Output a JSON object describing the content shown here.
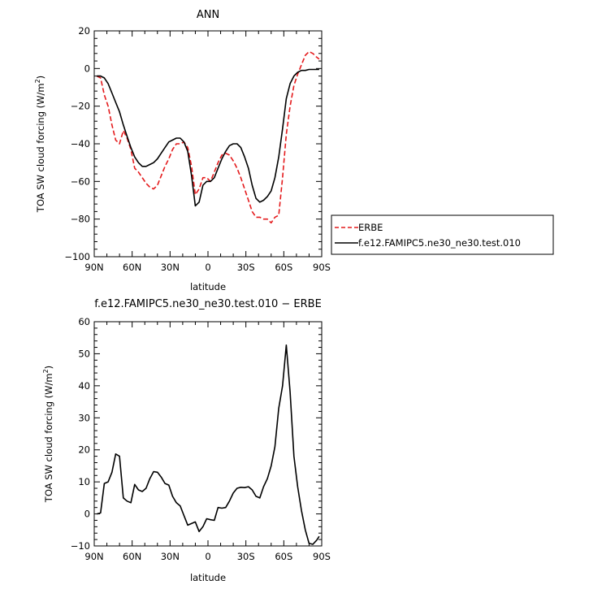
{
  "chart_data": [
    {
      "type": "line",
      "title": "ANN",
      "xlabel": "latitude",
      "ylabel": "TOA SW cloud forcing",
      "ylabel_unit": "(W/m",
      "ylabel_sup": "2",
      "ylabel_close": ")",
      "xlim": [
        90,
        -90
      ],
      "ylim": [
        -100,
        20
      ],
      "x_ticks": [
        90,
        60,
        30,
        0,
        -30,
        -60,
        -90
      ],
      "x_tick_labels": [
        "90N",
        "60N",
        "30N",
        "0",
        "30S",
        "60S",
        "90S"
      ],
      "y_ticks": [
        -100,
        -80,
        -60,
        -40,
        -20,
        0,
        20
      ],
      "y_tick_labels": [
        "−100",
        "−80",
        "−60",
        "−40",
        "−20",
        "0",
        "20"
      ],
      "legend_position": "right",
      "series": [
        {
          "name": "ERBE",
          "color": "#e41a1c",
          "dash": "dashed",
          "x": [
            88,
            85,
            82,
            79,
            76,
            73,
            70,
            67,
            64,
            61,
            58,
            55,
            52,
            49,
            46,
            43,
            40,
            37,
            34,
            31,
            28,
            25,
            22,
            19,
            16,
            13,
            10,
            7,
            4,
            1,
            -2,
            -5,
            -8,
            -11,
            -14,
            -17,
            -20,
            -23,
            -26,
            -29,
            -32,
            -35,
            -38,
            -41,
            -44,
            -47,
            -50,
            -53,
            -56,
            -59,
            -62,
            -65,
            -68,
            -71,
            -74,
            -77,
            -80,
            -83,
            -86,
            -88
          ],
          "y": [
            -4,
            -5,
            -14,
            -20,
            -30,
            -38,
            -40,
            -33,
            -37,
            -43,
            -53,
            -55,
            -58,
            -61,
            -63,
            -64,
            -62,
            -57,
            -52,
            -48,
            -43,
            -40,
            -40,
            -39,
            -42,
            -52,
            -67,
            -64,
            -58,
            -58,
            -60,
            -55,
            -50,
            -46,
            -45,
            -46,
            -49,
            -53,
            -58,
            -64,
            -70,
            -76,
            -79,
            -79,
            -80,
            -80,
            -82,
            -79,
            -78,
            -58,
            -35,
            -20,
            -9,
            -3,
            2,
            7,
            9,
            8,
            6,
            5
          ]
        },
        {
          "name": "f.e12.FAMIPC5.ne30_ne30.test.010",
          "color": "#000000",
          "dash": "solid",
          "x": [
            88,
            85,
            82,
            79,
            76,
            73,
            70,
            67,
            64,
            61,
            58,
            55,
            52,
            49,
            46,
            43,
            40,
            37,
            34,
            31,
            28,
            25,
            22,
            19,
            16,
            13,
            10,
            7,
            4,
            1,
            -2,
            -5,
            -8,
            -11,
            -14,
            -17,
            -20,
            -23,
            -26,
            -29,
            -32,
            -35,
            -38,
            -41,
            -44,
            -47,
            -50,
            -53,
            -56,
            -59,
            -62,
            -65,
            -68,
            -71,
            -74,
            -77,
            -80,
            -83,
            -86,
            -88
          ],
          "y": [
            -4,
            -4,
            -5,
            -8,
            -13,
            -18,
            -23,
            -30,
            -36,
            -42,
            -47,
            -50,
            -52,
            -52,
            -51,
            -50,
            -48,
            -45,
            -42,
            -39,
            -38,
            -37,
            -37,
            -39,
            -44,
            -57,
            -73,
            -71,
            -62,
            -60,
            -60,
            -58,
            -53,
            -48,
            -44,
            -41,
            -40,
            -40,
            -42,
            -47,
            -53,
            -62,
            -69,
            -71,
            -70,
            -68,
            -65,
            -58,
            -47,
            -32,
            -16,
            -8,
            -4,
            -2,
            -1,
            -1,
            -0.5,
            -0.5,
            -0.5,
            -0.5
          ]
        }
      ]
    },
    {
      "type": "line",
      "title": "f.e12.FAMIPC5.ne30_ne30.test.010 − ERBE",
      "xlabel": "latitude",
      "ylabel": "TOA SW cloud forcing",
      "ylabel_unit": "(W/m",
      "ylabel_sup": "2",
      "ylabel_close": ")",
      "xlim": [
        90,
        -90
      ],
      "ylim": [
        -10,
        60
      ],
      "x_ticks": [
        90,
        60,
        30,
        0,
        -30,
        -60,
        -90
      ],
      "x_tick_labels": [
        "90N",
        "60N",
        "30N",
        "0",
        "30S",
        "60S",
        "90S"
      ],
      "y_ticks": [
        -10,
        0,
        10,
        20,
        30,
        40,
        50,
        60
      ],
      "y_tick_labels": [
        "−10",
        "0",
        "10",
        "20",
        "30",
        "40",
        "50",
        "60"
      ],
      "series": [
        {
          "name": "",
          "color": "#000000",
          "dash": "solid",
          "x": [
            88,
            85,
            82,
            79,
            76,
            73,
            70,
            67,
            64,
            61,
            58,
            55,
            52,
            49,
            46,
            43,
            40,
            37,
            34,
            31,
            28,
            25,
            22,
            19,
            16,
            13,
            10,
            7,
            4,
            1,
            -2,
            -5,
            -8,
            -11,
            -14,
            -17,
            -20,
            -23,
            -26,
            -29,
            -32,
            -35,
            -38,
            -41,
            -44,
            -47,
            -50,
            -53,
            -56,
            -59,
            -62,
            -65,
            -68,
            -71,
            -74,
            -77,
            -80,
            -83,
            -86,
            -88
          ],
          "y": [
            0,
            0.3,
            9.5,
            10,
            13,
            18.7,
            18,
            5,
            4,
            3.5,
            9.2,
            7.5,
            7,
            8,
            11,
            13.2,
            13,
            11.5,
            9.5,
            9,
            5.5,
            3.5,
            2.5,
            -0.5,
            -3.5,
            -3,
            -2.5,
            -5.5,
            -4,
            -1.5,
            -1.8,
            -2,
            2,
            1.8,
            2,
            4,
            6.5,
            8,
            8.3,
            8.2,
            8.5,
            7.5,
            5.5,
            5,
            8.5,
            11,
            15,
            21,
            33,
            40,
            52.7,
            38,
            18,
            8.5,
            1,
            -5,
            -9.2,
            -9.5,
            -8.2,
            -7
          ]
        }
      ]
    }
  ]
}
